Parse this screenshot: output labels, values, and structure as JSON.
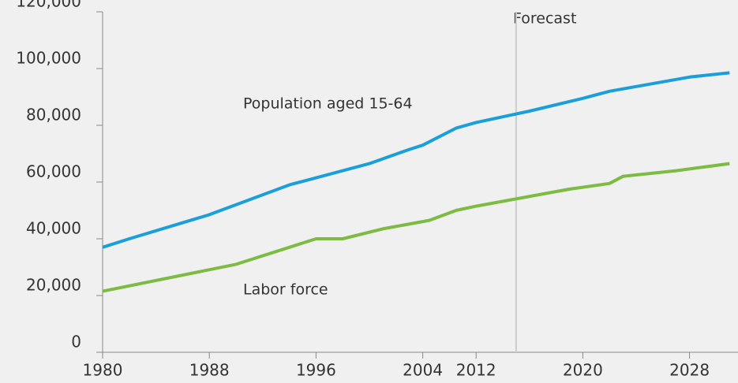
{
  "chart_data": {
    "type": "line",
    "annotations": [
      "Population aged 15-64",
      "Labor force",
      "Forecast"
    ],
    "forecast_x": 2015,
    "series": [
      {
        "name": "Population aged 15-64",
        "color": "#1a9fdb",
        "x": [
          1980,
          1982,
          1988,
          1994,
          2000,
          2003,
          2004,
          2009,
          2012,
          2016,
          2020,
          2022,
          2028,
          2031
        ],
        "values": [
          37000,
          40000,
          48500,
          59000,
          66500,
          71500,
          73000,
          79000,
          81000,
          85000,
          89500,
          92000,
          97000,
          98500
        ]
      },
      {
        "name": "Labor force",
        "color": "#7dbb42",
        "x": [
          1980,
          1990,
          1996,
          1998,
          2001,
          2005,
          2009,
          2012,
          2019,
          2022,
          2023,
          2027,
          2031
        ],
        "values": [
          21500,
          31000,
          40000,
          40000,
          43500,
          46500,
          50000,
          51500,
          57500,
          59500,
          62000,
          64000,
          66500
        ]
      }
    ],
    "xlim": [
      1980,
      2031.7
    ],
    "xticks": [
      1980,
      1988,
      1996,
      2004,
      2012,
      2020,
      2028
    ],
    "ylim": [
      0,
      120000
    ],
    "yticks": [
      {
        "value": 0,
        "label": "0"
      },
      {
        "value": 20000,
        "label": "20,000"
      },
      {
        "value": 40000,
        "label": "40,000"
      },
      {
        "value": 60000,
        "label": "60,000"
      },
      {
        "value": 80000,
        "label": "80,000"
      },
      {
        "value": 100000,
        "label": "100,000"
      },
      {
        "value": 120000,
        "label": "120,000"
      }
    ],
    "grid": false
  }
}
